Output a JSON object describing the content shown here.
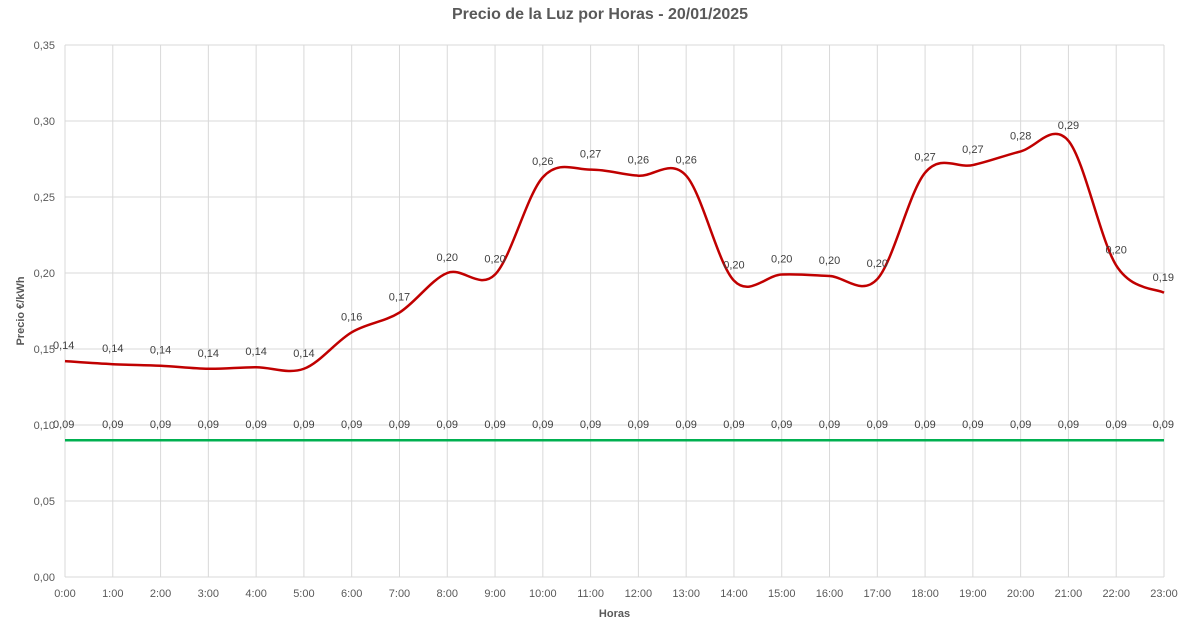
{
  "chart_data": {
    "type": "line",
    "title": "Precio de la Luz por Horas - 20/01/2025",
    "xlabel": "Horas",
    "ylabel": "Precio €/kWh",
    "categories": [
      "0:00",
      "1:00",
      "2:00",
      "3:00",
      "4:00",
      "5:00",
      "6:00",
      "7:00",
      "8:00",
      "9:00",
      "10:00",
      "11:00",
      "12:00",
      "13:00",
      "14:00",
      "15:00",
      "16:00",
      "17:00",
      "18:00",
      "19:00",
      "20:00",
      "21:00",
      "22:00",
      "23:00"
    ],
    "ylim": [
      0,
      0.35
    ],
    "yticks": [
      0,
      0.05,
      0.1,
      0.15,
      0.2,
      0.25,
      0.3,
      0.35
    ],
    "ytick_labels": [
      "0,00",
      "0,05",
      "0,10",
      "0,15",
      "0,20",
      "0,25",
      "0,30",
      "0,35"
    ],
    "grid": true,
    "series": [
      {
        "color": "#C00000",
        "smooth": true,
        "values": [
          0.142,
          0.14,
          0.139,
          0.137,
          0.138,
          0.137,
          0.161,
          0.174,
          0.2,
          0.199,
          0.263,
          0.268,
          0.264,
          0.264,
          0.195,
          0.199,
          0.198,
          0.196,
          0.266,
          0.271,
          0.28,
          0.287,
          0.205,
          0.187
        ],
        "labels": [
          "0,14",
          "0,14",
          "0,14",
          "0,14",
          "0,14",
          "0,14",
          "0,16",
          "0,17",
          "0,20",
          "0,20",
          "0,26",
          "0,27",
          "0,26",
          "0,26",
          "0,20",
          "0,20",
          "0,20",
          "0,20",
          "0,27",
          "0,27",
          "0,28",
          "0,29",
          "0,20",
          "0,19"
        ]
      },
      {
        "color": "#00B050",
        "smooth": false,
        "values": [
          0.09,
          0.09,
          0.09,
          0.09,
          0.09,
          0.09,
          0.09,
          0.09,
          0.09,
          0.09,
          0.09,
          0.09,
          0.09,
          0.09,
          0.09,
          0.09,
          0.09,
          0.09,
          0.09,
          0.09,
          0.09,
          0.09,
          0.09,
          0.09
        ],
        "labels": [
          "0,09",
          "0,09",
          "0,09",
          "0,09",
          "0,09",
          "0,09",
          "0,09",
          "0,09",
          "0,09",
          "0,09",
          "0,09",
          "0,09",
          "0,09",
          "0,09",
          "0,09",
          "0,09",
          "0,09",
          "0,09",
          "0,09",
          "0,09",
          "0,09",
          "0,09",
          "0,09",
          "0,09"
        ]
      }
    ]
  }
}
